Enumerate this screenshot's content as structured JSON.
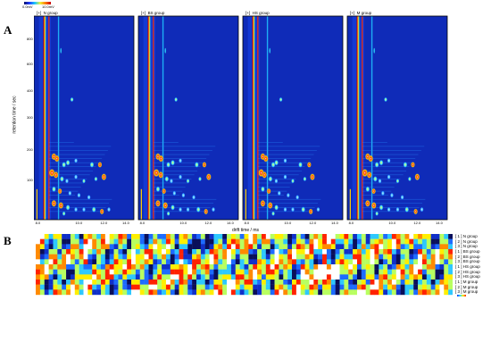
{
  "panel_a_label": "A",
  "panel_b_label": "B",
  "chart_data": [
    {
      "type": "heatmap",
      "panel": "A",
      "colorbar_labels": [
        "0.0mV",
        "10.0mV"
      ],
      "xlabel": "drift time / ms",
      "ylabel": "retention time / sec",
      "x_ticks": [
        "8.0",
        "10.0",
        "12.0",
        "14.0"
      ],
      "y_ticks": [
        "800",
        "600",
        "400",
        "300",
        "200",
        "100"
      ],
      "plots": [
        {
          "title": "N group"
        },
        {
          "title": "BS group"
        },
        {
          "title": "HS group"
        },
        {
          "title": "M group"
        }
      ]
    },
    {
      "type": "heatmap",
      "panel": "B",
      "rows": [
        "N group",
        "N group",
        "N group",
        "BS group",
        "BS group",
        "BS group",
        "HS group",
        "HS group",
        "HS group",
        "M group",
        "M group",
        "M group"
      ],
      "column_labels": []
    }
  ]
}
